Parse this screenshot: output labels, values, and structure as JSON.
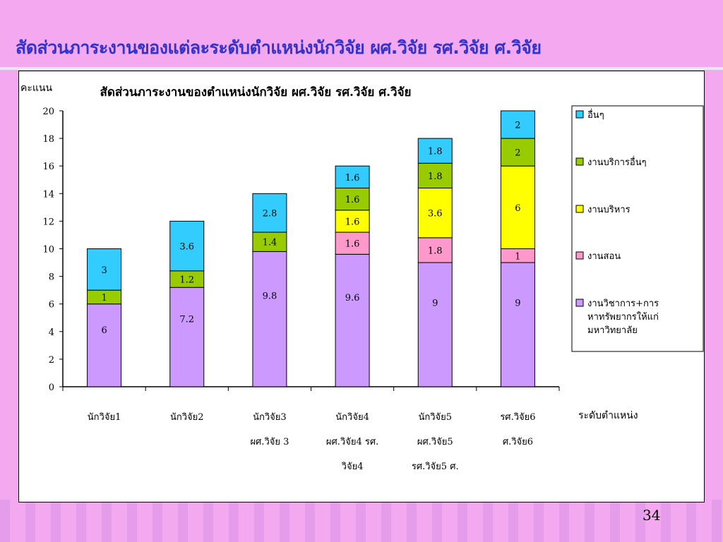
{
  "slide": {
    "title": "สัดส่วนภาระงานของแต่ละระดับตำแหน่งนักวิจัย ผศ.วิจัย รศ.วิจัย ศ.วิจัย",
    "page_number": "34"
  },
  "colors": {
    "teaching_research": "#cc99ff",
    "teaching": "#ff99cc",
    "admin": "#ffff00",
    "services": "#99cc00",
    "other": "#33ccff"
  },
  "chart_data": {
    "type": "bar",
    "stacked": true,
    "title": "สัดส่วนภาระงานของตำแหน่งนักวิจัย  ผศ.วิจัย  รศ.วิจัย ศ.วิจัย",
    "ylabel": "คะแนน",
    "xlabel": "ระดับตำแหน่ง",
    "ylim": [
      0,
      20
    ],
    "yticks": [
      0,
      2,
      4,
      6,
      8,
      10,
      12,
      14,
      16,
      18,
      20
    ],
    "grid": false,
    "legend_position": "right",
    "categories": [
      [
        "นักวิจัย1"
      ],
      [
        "นักวิจัย2"
      ],
      [
        "นักวิจัย3",
        "ผศ.วิจัย 3"
      ],
      [
        "นักวิจัย4",
        "ผศ.วิจัย4  รศ.",
        "วิจัย4"
      ],
      [
        "นักวิจัย5",
        "ผศ.วิจัย5",
        "รศ.วิจัย5  ศ."
      ],
      [
        "รศ.วิจัย6",
        "ศ.วิจัย6"
      ]
    ],
    "series": [
      {
        "name": "งานวิชาการ+การหาทรัพยากรให้แก่มหาวิทยาลัย",
        "legend_lines": [
          "งานวิชาการ+การ",
          "หาทรัพยากรให้แก่",
          "มหาวิทยาลัย"
        ],
        "color_key": "teaching_research",
        "values": [
          6,
          7.2,
          9.8,
          9.6,
          9,
          9
        ]
      },
      {
        "name": "งานสอน",
        "legend_lines": [
          "งานสอน"
        ],
        "color_key": "teaching",
        "values": [
          0,
          0,
          0,
          1.6,
          1.8,
          1
        ]
      },
      {
        "name": "งานบริหาร",
        "legend_lines": [
          "งานบริหาร"
        ],
        "color_key": "admin",
        "values": [
          0,
          0,
          0,
          1.6,
          3.6,
          6
        ]
      },
      {
        "name": "งานบริการอื่นๆ",
        "legend_lines": [
          "งานบริการอื่นๆ"
        ],
        "color_key": "services",
        "values": [
          1,
          1.2,
          1.4,
          1.6,
          1.8,
          2
        ]
      },
      {
        "name": "อื่นๆ",
        "legend_lines": [
          "อื่นๆ"
        ],
        "color_key": "other",
        "values": [
          3,
          3.6,
          2.8,
          1.6,
          1.8,
          2
        ]
      }
    ],
    "legend_order": [
      4,
      3,
      2,
      1,
      0
    ]
  }
}
